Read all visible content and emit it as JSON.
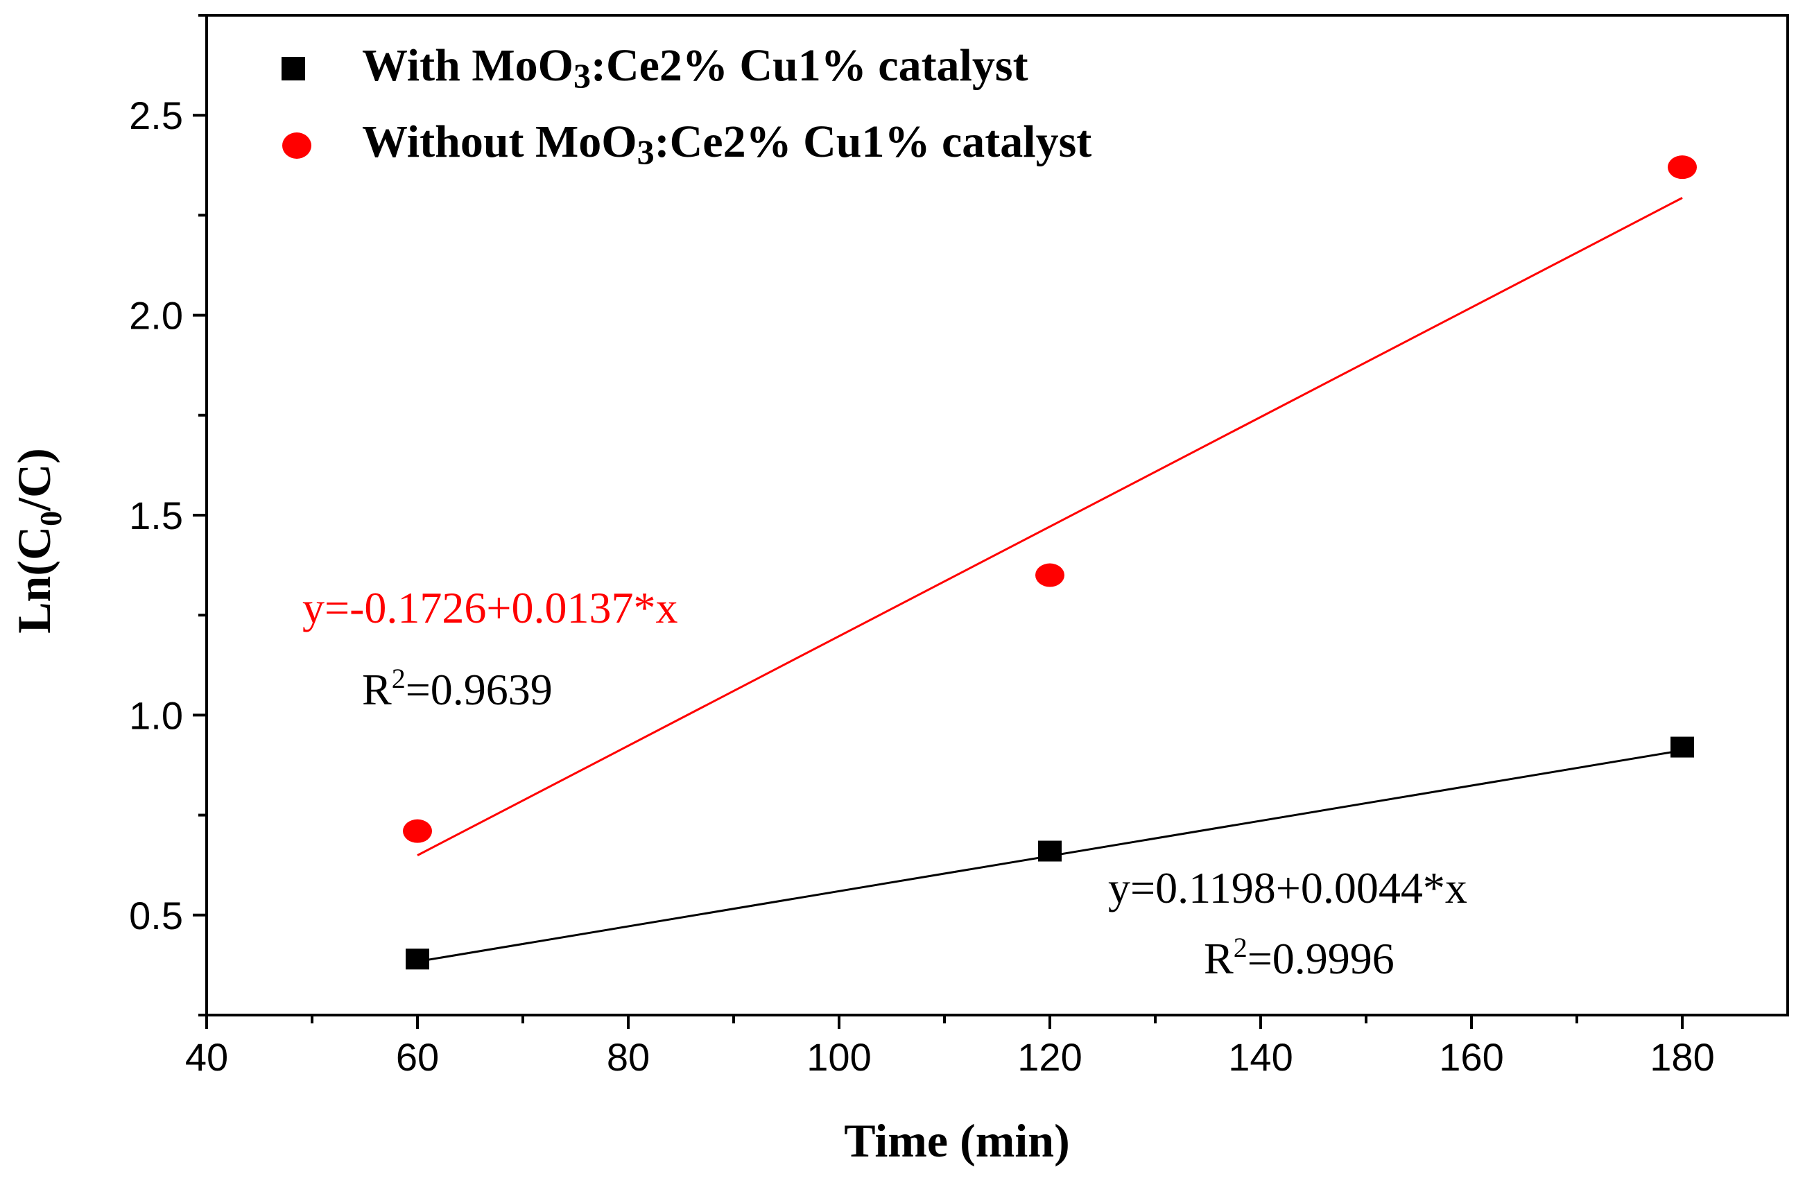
{
  "chart_data": {
    "type": "scatter",
    "xlabel": "Time (min)",
    "ylabel": {
      "main": "Ln(C",
      "sub": "0",
      "tail": "/C)"
    },
    "xlim": [
      40,
      190
    ],
    "ylim": [
      0.25,
      2.75
    ],
    "xticks": [
      40,
      60,
      80,
      100,
      120,
      140,
      160,
      180
    ],
    "yticks": [
      0.5,
      1.0,
      1.5,
      2.0,
      2.5
    ],
    "xtick_labels": [
      "40",
      "60",
      "80",
      "100",
      "120",
      "140",
      "160",
      "180"
    ],
    "ytick_labels": [
      "0.5",
      "1.0",
      "1.5",
      "2.0",
      "2.5"
    ],
    "legend_position": "top-left",
    "series": [
      {
        "name": "With MoO3:Ce2% Cu1% catalyst",
        "legend": {
          "pre": "With MoO",
          "sub": "3",
          "post": ":Ce2% Cu1% catalyst"
        },
        "marker": "square",
        "color": "#000000",
        "x": [
          60,
          120,
          180
        ],
        "y": [
          0.39,
          0.66,
          0.92
        ],
        "fit": {
          "intercept": 0.1198,
          "slope": 0.0044
        },
        "equation": "y=0.1198+0.0044*x",
        "r2": {
          "pre": "R",
          "sup": "2",
          "post": "=0.9996"
        }
      },
      {
        "name": "Without MoO3:Ce2% Cu1% catalyst",
        "legend": {
          "pre": "Without MoO",
          "sub": "3",
          "post": ":Ce2% Cu1% catalyst"
        },
        "marker": "circle",
        "color": "#ff0000",
        "x": [
          60,
          120,
          180
        ],
        "y": [
          0.71,
          1.35,
          2.37
        ],
        "fit": {
          "intercept": -0.1726,
          "slope": 0.0137
        },
        "equation": "y=-0.1726+0.0137*x",
        "r2": {
          "pre": "R",
          "sup": "2",
          "post": "=0.9639"
        }
      }
    ]
  }
}
